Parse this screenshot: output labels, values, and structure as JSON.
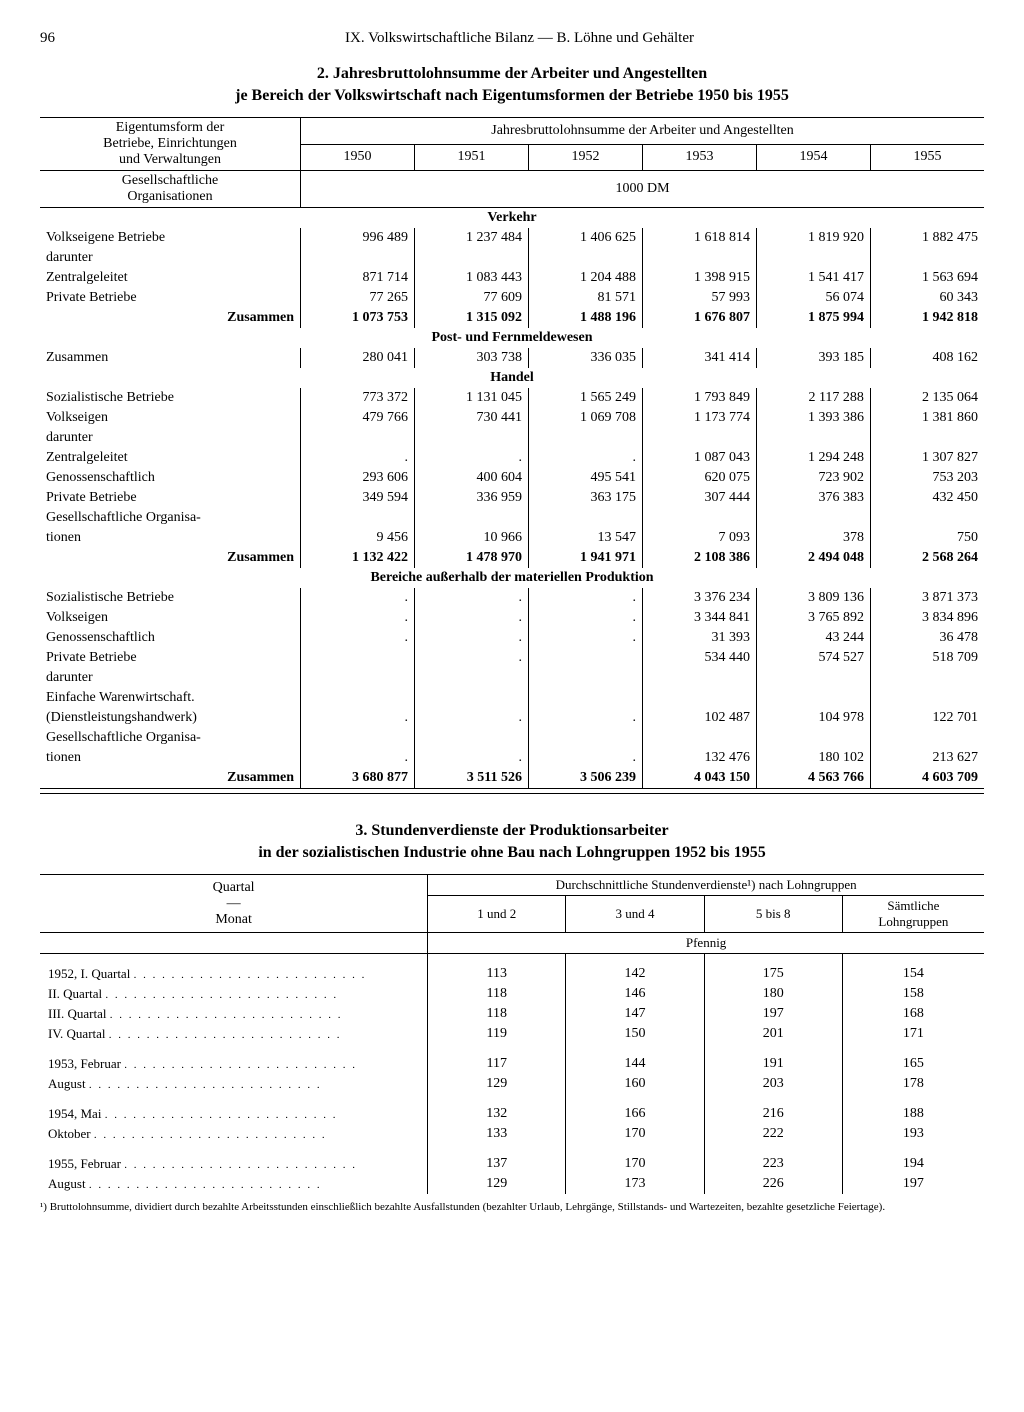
{
  "page": {
    "number": "96",
    "running_header": "IX. Volkswirtschaftliche Bilanz — B. Löhne und Gehälter"
  },
  "table1": {
    "title_line1": "2. Jahresbruttolohnsumme der Arbeiter und Angestellten",
    "title_line2": "je Bereich der Volkswirtschaft nach Eigentumsformen der Betriebe 1950 bis 1955",
    "header_left_l1": "Eigentumsform der",
    "header_left_l2": "Betriebe, Einrichtungen",
    "header_left_l3": "und Verwaltungen",
    "header_left_l4": "Gesellschaftliche",
    "header_left_l5": "Organisationen",
    "header_span": "Jahresbruttolohnsumme der Arbeiter und Angestellten",
    "years": [
      "1950",
      "1951",
      "1952",
      "1953",
      "1954",
      "1955"
    ],
    "unit": "1000 DM",
    "sections": [
      {
        "heading": "Verkehr",
        "rows": [
          {
            "label": "Volkseigene Betriebe",
            "indent": 0,
            "vals": [
              "996 489",
              "1 237 484",
              "1 406 625",
              "1 618 814",
              "1 819 920",
              "1 882 475"
            ]
          },
          {
            "label": "darunter",
            "indent": 1,
            "vals": [
              "",
              "",
              "",
              "",
              "",
              ""
            ]
          },
          {
            "label": "Zentralgeleitet",
            "indent": 2,
            "vals": [
              "871 714",
              "1 083 443",
              "1 204 488",
              "1 398 915",
              "1 541 417",
              "1 563 694"
            ]
          },
          {
            "label": "Private Betriebe",
            "indent": 0,
            "vals": [
              "77 265",
              "77 609",
              "81 571",
              "57 993",
              "56 074",
              "60 343"
            ]
          },
          {
            "label": "Zusammen",
            "indent": 0,
            "bold": true,
            "align": "right",
            "vals": [
              "1 073 753",
              "1 315 092",
              "1 488 196",
              "1 676 807",
              "1 875 994",
              "1 942 818"
            ]
          }
        ]
      },
      {
        "heading": "Post- und Fernmeldewesen",
        "rows": [
          {
            "label": "Zusammen",
            "indent": 0,
            "vals": [
              "280 041",
              "303 738",
              "336 035",
              "341 414",
              "393 185",
              "408 162"
            ]
          }
        ]
      },
      {
        "heading": "Handel",
        "rows": [
          {
            "label": "Sozialistische Betriebe",
            "indent": 0,
            "vals": [
              "773 372",
              "1 131 045",
              "1 565 249",
              "1 793 849",
              "2 117 288",
              "2 135 064"
            ]
          },
          {
            "label": "Volkseigen",
            "indent": 1,
            "vals": [
              "479 766",
              "730 441",
              "1 069 708",
              "1 173 774",
              "1 393 386",
              "1 381 860"
            ]
          },
          {
            "label": "darunter",
            "indent": 2,
            "vals": [
              "",
              "",
              "",
              "",
              "",
              ""
            ]
          },
          {
            "label": "Zentralgeleitet",
            "indent": 2,
            "vals": [
              ".",
              ".",
              ".",
              "1 087 043",
              "1 294 248",
              "1 307 827"
            ]
          },
          {
            "label": "Genossenschaftlich",
            "indent": 1,
            "vals": [
              "293 606",
              "400 604",
              "495 541",
              "620 075",
              "723 902",
              "753 203"
            ]
          },
          {
            "label": "Private Betriebe",
            "indent": 0,
            "vals": [
              "349 594",
              "336 959",
              "363 175",
              "307 444",
              "376 383",
              "432 450"
            ]
          },
          {
            "label": "Gesellschaftliche Organisa-",
            "indent": 0,
            "vals": [
              "",
              "",
              "",
              "",
              "",
              ""
            ]
          },
          {
            "label": "tionen",
            "indent": 1,
            "vals": [
              "9 456",
              "10 966",
              "13 547",
              "7 093",
              "378",
              "750"
            ]
          },
          {
            "label": "Zusammen",
            "indent": 0,
            "bold": true,
            "align": "right",
            "vals": [
              "1 132 422",
              "1 478 970",
              "1 941 971",
              "2 108 386",
              "2 494 048",
              "2 568 264"
            ]
          }
        ]
      },
      {
        "heading": "Bereiche außerhalb der materiellen Produktion",
        "rows": [
          {
            "label": "Sozialistische Betriebe",
            "indent": 0,
            "vals": [
              ".",
              ".",
              ".",
              "3 376 234",
              "3 809 136",
              "3 871 373"
            ]
          },
          {
            "label": "Volkseigen",
            "indent": 1,
            "vals": [
              ".",
              ".",
              ".",
              "3 344 841",
              "3 765 892",
              "3 834 896"
            ]
          },
          {
            "label": "Genossenschaftlich",
            "indent": 1,
            "vals": [
              ".",
              ".",
              ".",
              "31 393",
              "43 244",
              "36 478"
            ]
          },
          {
            "label": "Private Betriebe",
            "indent": 0,
            "vals": [
              "",
              ".",
              "",
              "534 440",
              "574 527",
              "518 709"
            ]
          },
          {
            "label": "darunter",
            "indent": 1,
            "vals": [
              "",
              "",
              "",
              "",
              "",
              ""
            ]
          },
          {
            "label": "Einfache Warenwirtschaft.",
            "indent": 1,
            "vals": [
              "",
              "",
              "",
              "",
              "",
              ""
            ]
          },
          {
            "label": "(Dienstleistungshandwerk)",
            "indent": 1,
            "vals": [
              ".",
              ".",
              ".",
              "102 487",
              "104 978",
              "122 701"
            ]
          },
          {
            "label": "Gesellschaftliche Organisa-",
            "indent": 0,
            "vals": [
              "",
              "",
              "",
              "",
              "",
              ""
            ]
          },
          {
            "label": "tionen",
            "indent": 1,
            "vals": [
              ".",
              ".",
              ".",
              "132 476",
              "180 102",
              "213 627"
            ]
          },
          {
            "label": "Zusammen",
            "indent": 0,
            "bold": true,
            "align": "right",
            "vals": [
              "3 680 877",
              "3 511 526",
              "3 506 239",
              "4 043 150",
              "4 563 766",
              "4 603 709"
            ]
          }
        ]
      }
    ]
  },
  "table2": {
    "title_line1": "3. Stundenverdienste der Produktionsarbeiter",
    "title_line2": "in der sozialistischen Industrie ohne Bau nach Lohngruppen 1952 bis 1955",
    "header_left_l1": "Quartal",
    "header_left_l2": "—",
    "header_left_l3": "Monat",
    "header_span": "Durchschnittliche Stundenverdienste¹) nach Lohngruppen",
    "columns": [
      "1 und 2",
      "3 und 4",
      "5 bis 8",
      "Sämtliche Lohngruppen"
    ],
    "unit": "Pfennig",
    "groups": [
      {
        "rows": [
          {
            "label": "1952,  I. Quartal",
            "vals": [
              "113",
              "142",
              "175",
              "154"
            ]
          },
          {
            "label": "II. Quartal",
            "indent": 1,
            "vals": [
              "118",
              "146",
              "180",
              "158"
            ]
          },
          {
            "label": "III. Quartal",
            "indent": 1,
            "vals": [
              "118",
              "147",
              "197",
              "168"
            ]
          },
          {
            "label": "IV. Quartal",
            "indent": 1,
            "vals": [
              "119",
              "150",
              "201",
              "171"
            ]
          }
        ]
      },
      {
        "rows": [
          {
            "label": "1953, Februar",
            "vals": [
              "117",
              "144",
              "191",
              "165"
            ]
          },
          {
            "label": "August",
            "indent": 1,
            "vals": [
              "129",
              "160",
              "203",
              "178"
            ]
          }
        ]
      },
      {
        "rows": [
          {
            "label": "1954, Mai",
            "vals": [
              "132",
              "166",
              "216",
              "188"
            ]
          },
          {
            "label": "Oktober",
            "indent": 1,
            "vals": [
              "133",
              "170",
              "222",
              "193"
            ]
          }
        ]
      },
      {
        "rows": [
          {
            "label": "1955, Februar",
            "vals": [
              "137",
              "170",
              "223",
              "194"
            ]
          },
          {
            "label": "August",
            "indent": 1,
            "vals": [
              "129",
              "173",
              "226",
              "197"
            ]
          }
        ]
      }
    ],
    "footnote": "¹) Bruttolohnsumme, dividiert durch bezahlte Arbeitsstunden einschließlich bezahlte Ausfallstunden (bezahlter Urlaub, Lehrgänge, Stillstands- und Wartezeiten, bezahlte gesetzliche Feiertage)."
  }
}
